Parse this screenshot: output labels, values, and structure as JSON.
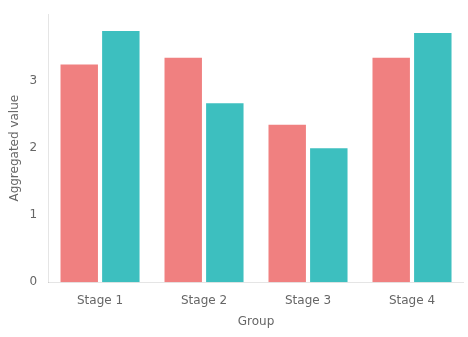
{
  "chart_data": {
    "type": "bar",
    "categories": [
      "Stage 1",
      "Stage 2",
      "Stage 3",
      "Stage 4"
    ],
    "series": [
      {
        "color": "#F08080",
        "values": [
          3.25,
          3.35,
          2.35,
          3.35
        ]
      },
      {
        "color": "#3DBFBF",
        "values": [
          3.75,
          2.67,
          2.0,
          3.72
        ]
      }
    ],
    "xlabel": "Group",
    "ylabel": "Aggregated value",
    "ylim": [
      0,
      4.0
    ],
    "yticks": [
      0,
      1,
      2,
      3
    ],
    "grid": false
  }
}
